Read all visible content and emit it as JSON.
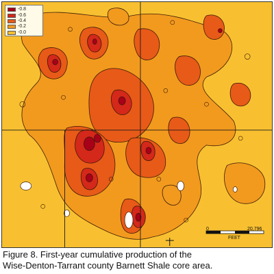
{
  "legend": {
    "items": [
      {
        "label": "-0.8",
        "color": "#a80018"
      },
      {
        "label": "-0.6",
        "color": "#d4281a"
      },
      {
        "label": "-0.4",
        "color": "#e85a18"
      },
      {
        "label": "-0.2",
        "color": "#f29a1e"
      },
      {
        "label": "-0.0",
        "color": "#f8c030"
      }
    ]
  },
  "scale": {
    "left_label": "0",
    "right_label": "20,796",
    "unit_label": "FEET"
  },
  "caption": {
    "line1": "Figure 8. First-year cumulative production of the",
    "line2": "Wise-Denton-Tarrant county Barnett Shale core area."
  },
  "colors": {
    "background": "#f8c030",
    "low": "#f29a1e",
    "mid": "#e85a18",
    "high": "#d4281a",
    "peak": "#a80018",
    "contour": "#3a1a08"
  }
}
